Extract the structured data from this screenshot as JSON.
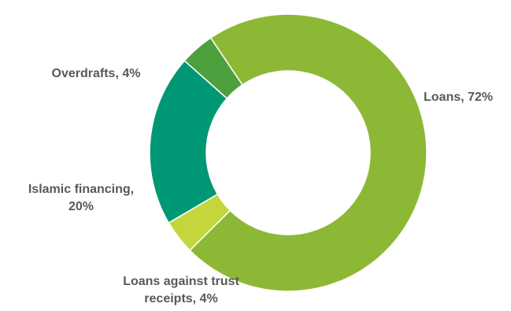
{
  "chart_data": {
    "type": "pie",
    "variant": "donut",
    "title": "",
    "legend": "none",
    "slices": [
      {
        "name": "Loans",
        "value": 72,
        "label_lines": [
          "Loans, 72%"
        ],
        "color": "#8DB836"
      },
      {
        "name": "Loans against trust receipts",
        "value": 4,
        "label_lines": [
          "Loans against trust",
          "receipts, 4%"
        ],
        "color": "#C5D63D"
      },
      {
        "name": "Islamic financing",
        "value": 20,
        "label_lines": [
          "Islamic financing,",
          "20%"
        ],
        "color": "#009874"
      },
      {
        "name": "Overdrafts",
        "value": 4,
        "label_lines": [
          "Overdrafts, 4%"
        ],
        "color": "#4E9F3D"
      }
    ]
  }
}
